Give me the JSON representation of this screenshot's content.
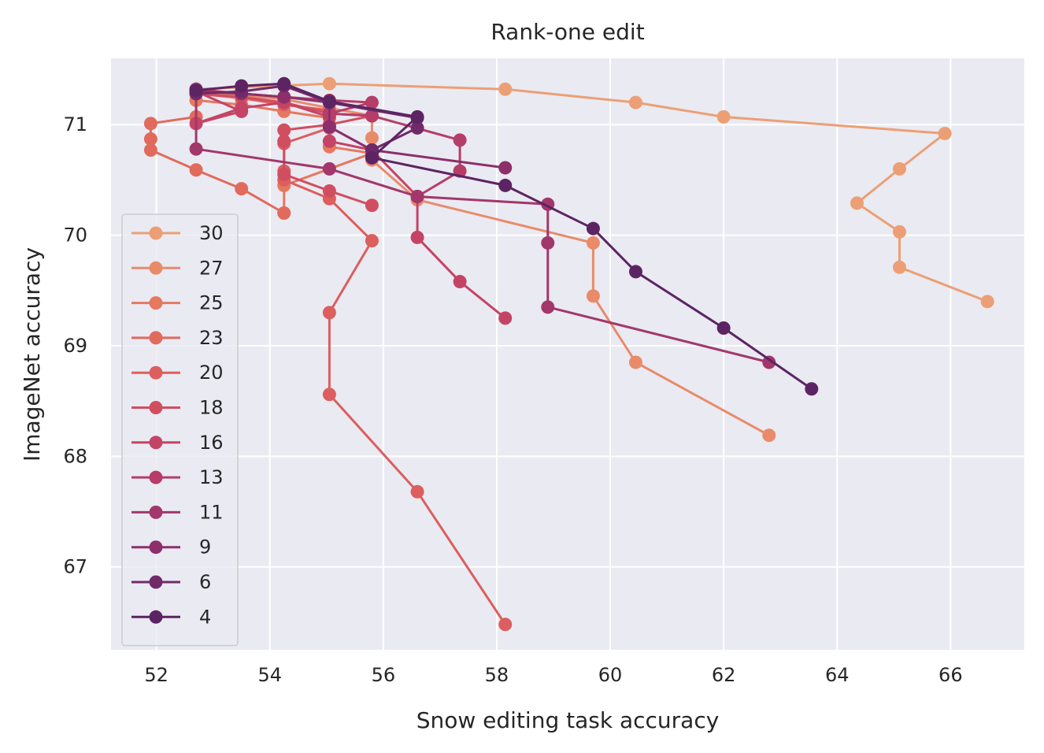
{
  "chart_data": {
    "type": "line",
    "title": "Rank-one edit",
    "xlabel": "Snow editing task accuracy",
    "ylabel": "ImageNet accuracy",
    "xlim": [
      51.2,
      67.3
    ],
    "ylim": [
      66.25,
      71.6
    ],
    "xticks": [
      52,
      54,
      56,
      58,
      60,
      62,
      64,
      66
    ],
    "yticks": [
      67,
      68,
      69,
      70,
      71
    ],
    "grid": true,
    "legend_position": "lower-left",
    "series": [
      {
        "name": "30",
        "color": "#ec9f75",
        "points": [
          [
            52.7,
            71.32
          ],
          [
            55.05,
            71.37
          ],
          [
            58.15,
            71.32
          ],
          [
            60.45,
            71.2
          ],
          [
            62.0,
            71.07
          ],
          [
            65.9,
            70.92
          ],
          [
            65.1,
            70.6
          ],
          [
            64.35,
            70.29
          ],
          [
            65.1,
            70.03
          ],
          [
            65.1,
            69.71
          ],
          [
            66.65,
            69.4
          ]
        ]
      },
      {
        "name": "27",
        "color": "#e98b6a",
        "points": [
          [
            52.7,
            71.3
          ],
          [
            54.25,
            71.23
          ],
          [
            55.05,
            71.15
          ],
          [
            55.8,
            71.08
          ],
          [
            55.8,
            70.88
          ],
          [
            55.8,
            70.68
          ],
          [
            56.6,
            70.32
          ],
          [
            59.7,
            69.93
          ],
          [
            59.7,
            69.45
          ],
          [
            60.45,
            68.85
          ],
          [
            62.8,
            68.19
          ]
        ]
      },
      {
        "name": "25",
        "color": "#e6785f",
        "points": [
          [
            52.7,
            71.22
          ],
          [
            53.5,
            71.18
          ],
          [
            54.25,
            71.12
          ],
          [
            55.05,
            71.06
          ],
          [
            55.05,
            70.8
          ],
          [
            55.8,
            70.74
          ],
          [
            54.25,
            70.45
          ],
          [
            54.25,
            70.2
          ]
        ]
      },
      {
        "name": "23",
        "color": "#e06b5c",
        "points": [
          [
            52.7,
            71.07
          ],
          [
            51.9,
            71.01
          ],
          [
            51.9,
            70.87
          ],
          [
            51.9,
            70.77
          ],
          [
            52.7,
            70.59
          ],
          [
            53.5,
            70.42
          ],
          [
            54.25,
            70.2
          ]
        ]
      },
      {
        "name": "20",
        "color": "#dc5e5e",
        "points": [
          [
            52.7,
            71.28
          ],
          [
            53.5,
            71.24
          ],
          [
            54.25,
            71.18
          ],
          [
            55.05,
            71.13
          ],
          [
            55.05,
            70.97
          ],
          [
            54.25,
            70.83
          ],
          [
            54.25,
            70.58
          ],
          [
            54.25,
            70.5
          ],
          [
            55.05,
            70.33
          ],
          [
            55.8,
            69.95
          ],
          [
            55.05,
            69.3
          ],
          [
            55.05,
            68.56
          ],
          [
            56.6,
            67.68
          ],
          [
            58.15,
            66.48
          ]
        ]
      },
      {
        "name": "18",
        "color": "#d14e61",
        "points": [
          [
            52.7,
            71.28
          ],
          [
            53.5,
            71.25
          ],
          [
            54.25,
            71.2
          ],
          [
            55.05,
            71.1
          ],
          [
            55.8,
            71.08
          ],
          [
            55.05,
            71.0
          ],
          [
            54.25,
            70.95
          ],
          [
            54.25,
            70.85
          ],
          [
            54.25,
            70.55
          ],
          [
            55.05,
            70.4
          ],
          [
            55.8,
            70.27
          ]
        ]
      },
      {
        "name": "16",
        "color": "#c44465",
        "points": [
          [
            52.7,
            71.3
          ],
          [
            53.5,
            71.12
          ],
          [
            52.7,
            71.01
          ],
          [
            53.5,
            71.15
          ],
          [
            54.25,
            71.2
          ],
          [
            55.05,
            71.07
          ],
          [
            55.05,
            70.85
          ],
          [
            55.8,
            70.77
          ],
          [
            56.6,
            70.35
          ],
          [
            56.6,
            69.98
          ],
          [
            57.35,
            69.58
          ],
          [
            58.15,
            69.25
          ]
        ]
      },
      {
        "name": "13",
        "color": "#b53d68",
        "points": [
          [
            52.7,
            71.32
          ],
          [
            53.5,
            71.28
          ],
          [
            54.25,
            71.25
          ],
          [
            55.05,
            71.22
          ],
          [
            55.8,
            71.2
          ],
          [
            55.05,
            71.1
          ],
          [
            55.8,
            71.08
          ],
          [
            57.35,
            70.86
          ],
          [
            57.35,
            70.58
          ],
          [
            56.6,
            70.35
          ]
        ]
      },
      {
        "name": "11",
        "color": "#a2376b",
        "points": [
          [
            52.7,
            71.32
          ],
          [
            52.7,
            70.78
          ],
          [
            55.05,
            70.6
          ],
          [
            56.6,
            70.35
          ],
          [
            58.9,
            70.28
          ],
          [
            58.9,
            69.93
          ],
          [
            58.9,
            69.35
          ],
          [
            62.8,
            68.85
          ]
        ]
      },
      {
        "name": "9",
        "color": "#8c2f6b",
        "points": [
          [
            52.7,
            71.3
          ],
          [
            53.5,
            71.28
          ],
          [
            54.25,
            71.25
          ],
          [
            55.05,
            71.2
          ],
          [
            55.05,
            70.98
          ],
          [
            55.8,
            70.77
          ],
          [
            58.15,
            70.61
          ]
        ]
      },
      {
        "name": "6",
        "color": "#702a68",
        "points": [
          [
            52.7,
            71.28
          ],
          [
            53.5,
            71.3
          ],
          [
            54.25,
            71.35
          ],
          [
            55.05,
            71.2
          ],
          [
            56.6,
            71.06
          ],
          [
            56.6,
            70.97
          ],
          [
            55.8,
            70.77
          ],
          [
            55.8,
            70.72
          ]
        ]
      },
      {
        "name": "4",
        "color": "#5c2463",
        "points": [
          [
            52.7,
            71.31
          ],
          [
            53.5,
            71.35
          ],
          [
            54.25,
            71.37
          ],
          [
            55.05,
            71.21
          ],
          [
            56.6,
            71.07
          ],
          [
            55.8,
            70.7
          ],
          [
            58.15,
            70.45
          ],
          [
            59.7,
            70.06
          ],
          [
            60.45,
            69.67
          ],
          [
            62.0,
            69.16
          ],
          [
            63.55,
            68.61
          ]
        ]
      }
    ]
  }
}
